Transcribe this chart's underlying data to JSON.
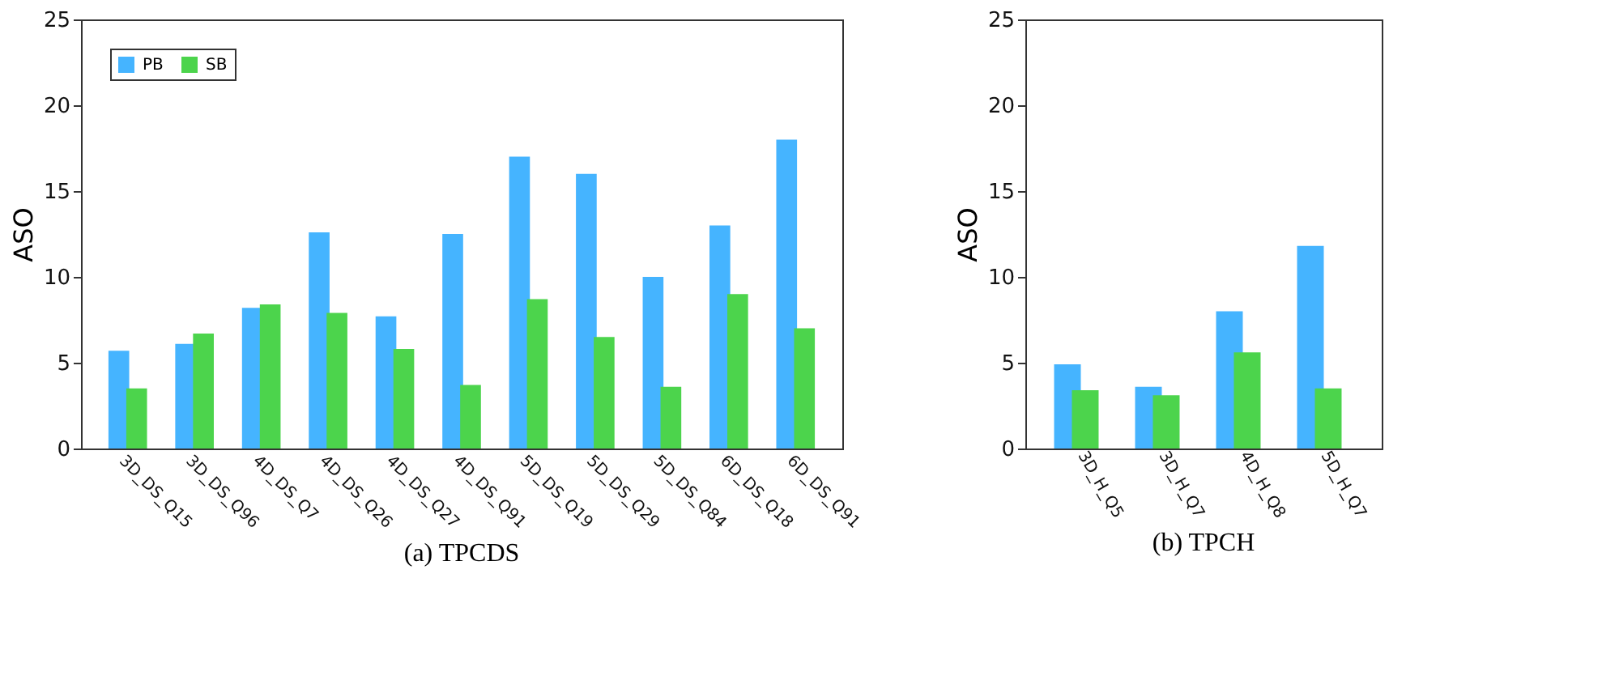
{
  "chart_data": [
    {
      "type": "bar",
      "title": "(a) TPCDS",
      "ylabel": "ASO",
      "categories": [
        "3D_DS_Q15",
        "3D_DS_Q96",
        "4D_DS_Q7",
        "4D_DS_Q26",
        "4D_DS_Q27",
        "4D_DS_Q91",
        "5D_DS_Q19",
        "5D_DS_Q29",
        "5D_DS_Q84",
        "6D_DS_Q18",
        "6D_DS_Q91"
      ],
      "series": [
        {
          "name": "PB",
          "color": "#45b4ff",
          "values": [
            5.7,
            6.1,
            8.2,
            12.6,
            7.7,
            12.5,
            17.0,
            16.0,
            10.0,
            13.0,
            18.0
          ]
        },
        {
          "name": "SB",
          "color": "#4cd44c",
          "values": [
            3.5,
            6.7,
            8.4,
            7.9,
            5.8,
            3.7,
            8.7,
            6.5,
            3.6,
            9.0,
            7.0
          ]
        }
      ],
      "ylim": [
        0,
        25
      ],
      "yticks": [
        0,
        5,
        10,
        15,
        20,
        25
      ],
      "grid": false,
      "legend": "top left"
    },
    {
      "type": "bar",
      "title": "(b) TPCH",
      "ylabel": "ASO",
      "categories": [
        "3D_H_Q5",
        "3D_H_Q7",
        "4D_H_Q8",
        "5D_H_Q7"
      ],
      "series": [
        {
          "name": "PB",
          "color": "#45b4ff",
          "values": [
            4.9,
            3.6,
            8.0,
            11.8
          ]
        },
        {
          "name": "SB",
          "color": "#4cd44c",
          "values": [
            3.4,
            3.1,
            5.6,
            3.5
          ]
        }
      ],
      "ylim": [
        0,
        25
      ],
      "yticks": [
        0,
        5,
        10,
        15,
        20,
        25
      ],
      "grid": false,
      "legend": "top left"
    }
  ]
}
